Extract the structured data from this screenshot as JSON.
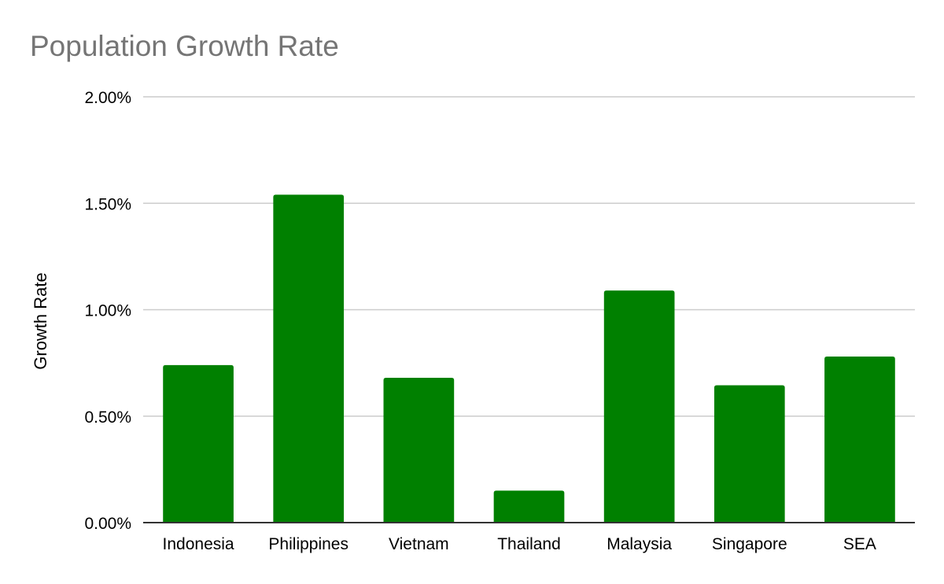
{
  "chart_data": {
    "type": "bar",
    "title": "Population Growth Rate",
    "xlabel": "",
    "ylabel": "Growth Rate",
    "categories": [
      "Indonesia",
      "Philippines",
      "Vietnam",
      "Thailand",
      "Malaysia",
      "Singapore",
      "SEA"
    ],
    "values": [
      0.74,
      1.54,
      0.68,
      0.15,
      1.09,
      0.645,
      0.78
    ],
    "ylim": [
      0,
      2
    ],
    "yticks": [
      0,
      0.5,
      1.0,
      1.5,
      2.0
    ],
    "ytick_labels": [
      "0.00%",
      "0.50%",
      "1.00%",
      "1.50%",
      "2.00%"
    ],
    "grid": true,
    "legend": "none",
    "bar_color": "#008000",
    "grid_color": "#cccccc",
    "axis_color": "#333333"
  }
}
